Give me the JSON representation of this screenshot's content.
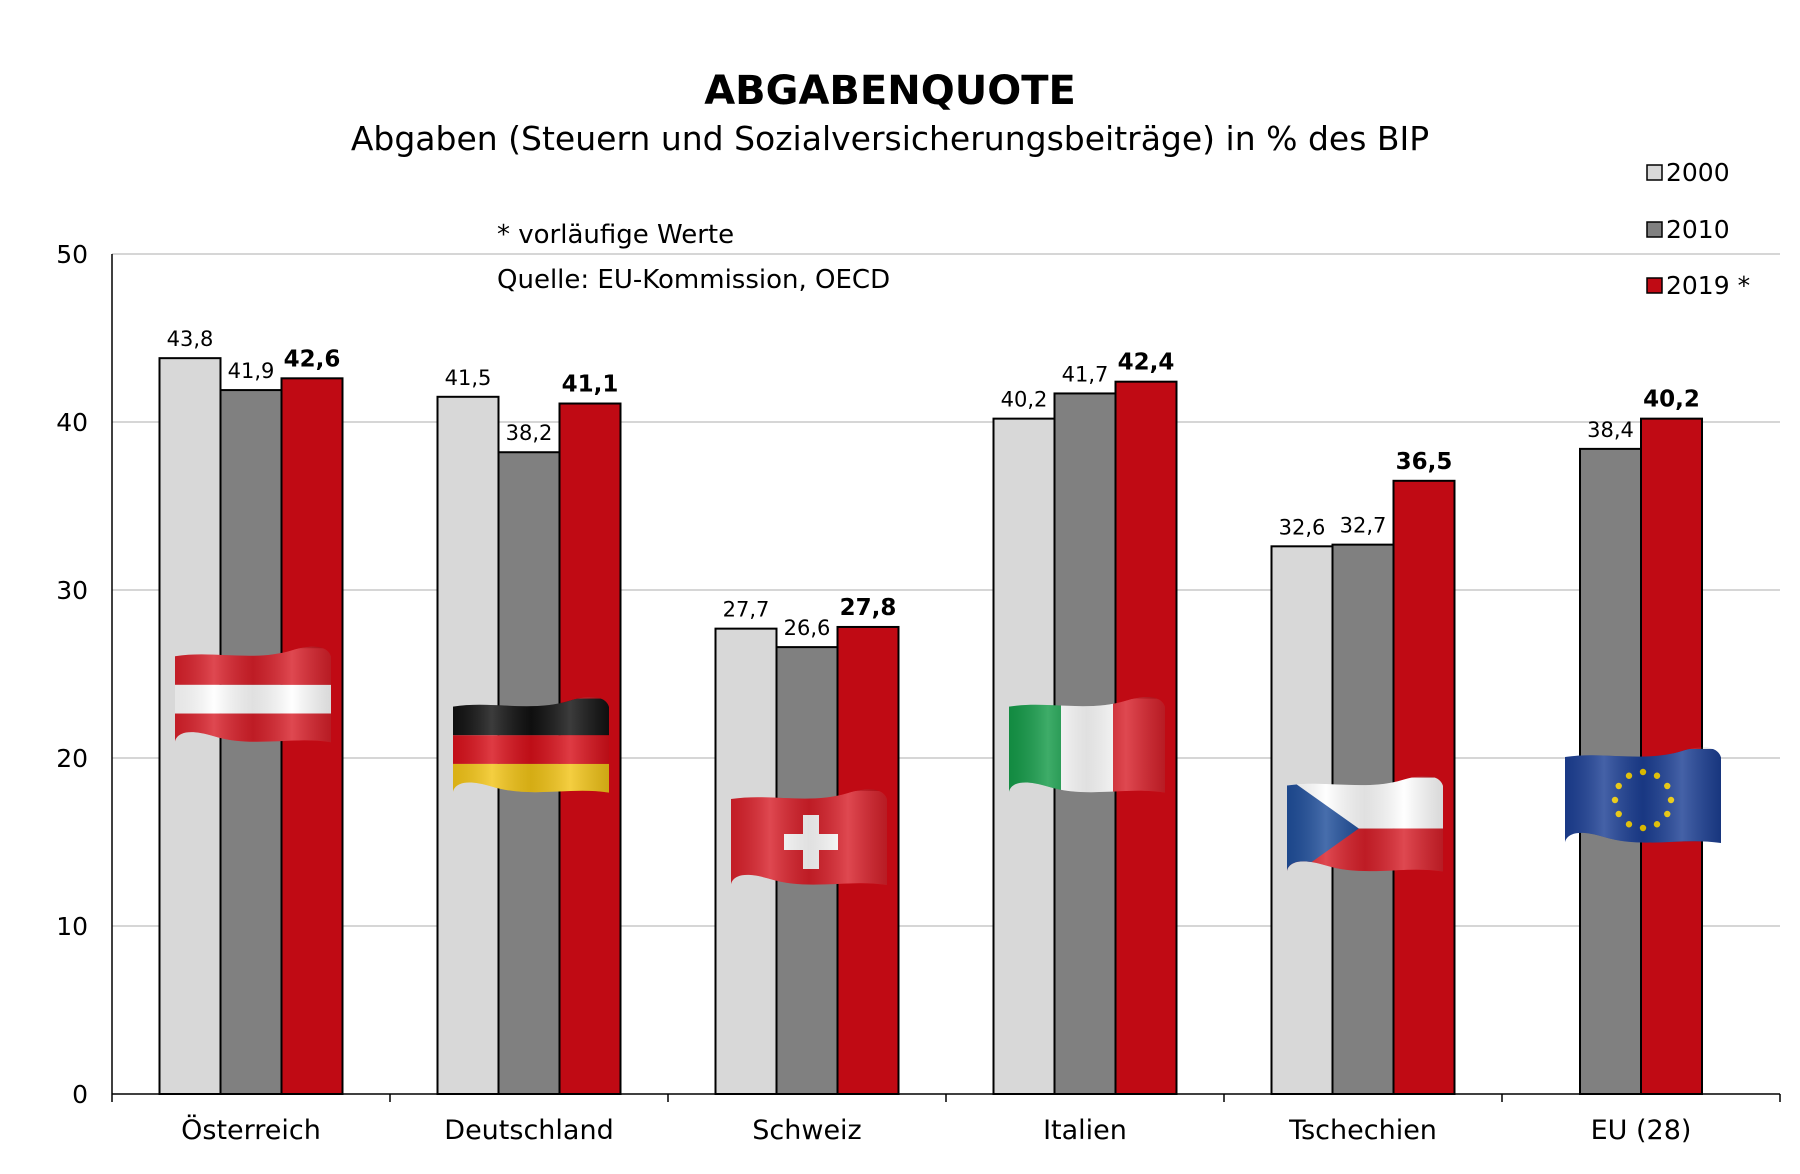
{
  "colors": {
    "s2000": "#d8d8d8",
    "s2010": "#808080",
    "s2019": "#c00a14",
    "grid": "#c8c8c8",
    "axis": "#000000"
  },
  "chart_data": {
    "type": "bar",
    "title": "ABGABENQUOTE",
    "subtitle": "Abgaben (Steuern und Sozialversicherungsbeiträge) in % des BIP",
    "notes": [
      "* vorläufige Werte",
      "Quelle: EU-Kommission, OECD"
    ],
    "categories": [
      "Österreich",
      "Deutschland",
      "Schweiz",
      "Italien",
      "Tschechien",
      "EU (28)"
    ],
    "series": [
      {
        "name": "2000",
        "values": [
          43.8,
          41.5,
          27.7,
          40.2,
          32.6,
          null
        ],
        "labels": [
          "43,8",
          "41,5",
          "27,7",
          "40,2",
          "32,6",
          ""
        ]
      },
      {
        "name": "2010",
        "values": [
          41.9,
          38.2,
          26.6,
          41.7,
          32.7,
          38.4
        ],
        "labels": [
          "41,9",
          "38,2",
          "26,6",
          "41,7",
          "32,7",
          "38,4"
        ]
      },
      {
        "name": "2019 *",
        "values": [
          42.6,
          41.1,
          27.8,
          42.4,
          36.5,
          40.2
        ],
        "labels": [
          "42,6",
          "41,1",
          "27,8",
          "42,4",
          "36,5",
          "40,2"
        ]
      }
    ],
    "ylim": [
      0,
      50
    ],
    "yticks": [
      0,
      10,
      20,
      30,
      40,
      50
    ],
    "grid": true,
    "legend": "top-right",
    "flags": [
      "austria-flag",
      "germany-flag",
      "switzerland-flag",
      "italy-flag",
      "czech-flag",
      "eu-flag"
    ]
  }
}
